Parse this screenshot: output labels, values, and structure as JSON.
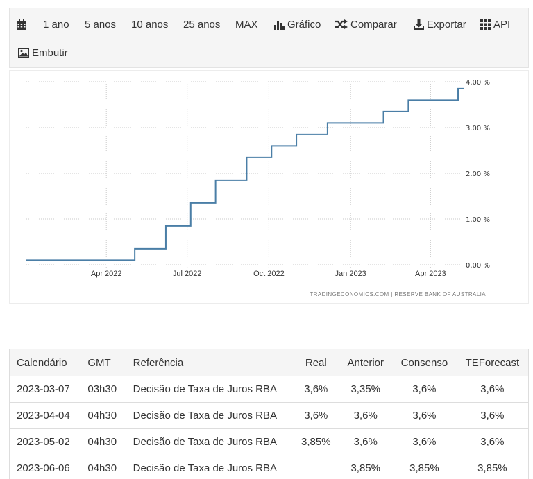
{
  "toolbar": {
    "items": [
      {
        "label": "",
        "icon": "calendar-icon"
      },
      {
        "label": "1 ano"
      },
      {
        "label": "5 anos"
      },
      {
        "label": "10 anos"
      },
      {
        "label": "25 anos"
      },
      {
        "label": "MAX"
      },
      {
        "label": "Gráfico",
        "icon": "bar-chart-icon"
      },
      {
        "label": "Comparar",
        "icon": "shuffle-icon"
      },
      {
        "label": "Exportar",
        "icon": "download-icon"
      },
      {
        "label": "API",
        "icon": "grid-icon"
      },
      {
        "label": "Embutir",
        "icon": "image-icon"
      }
    ]
  },
  "chart_data": {
    "type": "line",
    "step": true,
    "title": "",
    "xlabel": "",
    "ylabel": "",
    "x_ticks": [
      "Apr 2022",
      "Jul 2022",
      "Oct 2022",
      "Jan 2023",
      "Apr 2023"
    ],
    "y_ticks": [
      "0.00 %",
      "1.00 %",
      "2.00 %",
      "3.00 %",
      "4.00 %"
    ],
    "ylim": [
      0,
      4
    ],
    "xlim": [
      "2022-01-01",
      "2023-05-09"
    ],
    "grid": true,
    "y_axis_side": "right",
    "line_color": "#4a7ea6",
    "series": [
      {
        "points": [
          {
            "x": "2022-01-01",
            "y": 0.1
          },
          {
            "x": "2022-05-03",
            "y": 0.35
          },
          {
            "x": "2022-06-07",
            "y": 0.85
          },
          {
            "x": "2022-07-05",
            "y": 1.35
          },
          {
            "x": "2022-08-02",
            "y": 1.85
          },
          {
            "x": "2022-09-06",
            "y": 2.35
          },
          {
            "x": "2022-10-04",
            "y": 2.6
          },
          {
            "x": "2022-11-01",
            "y": 2.85
          },
          {
            "x": "2022-12-06",
            "y": 3.1
          },
          {
            "x": "2023-02-07",
            "y": 3.35
          },
          {
            "x": "2023-03-07",
            "y": 3.6
          },
          {
            "x": "2023-05-02",
            "y": 3.85
          }
        ]
      }
    ],
    "source": "TRADINGECONOMICS.COM | RESERVE BANK OF AUSTRALIA"
  },
  "calendar": {
    "headers": [
      "Calendário",
      "GMT",
      "Referência",
      "Real",
      "Anterior",
      "Consenso",
      "TEForecast"
    ],
    "rows": [
      [
        "2023-03-07",
        "03h30",
        "Decisão de Taxa de Juros RBA",
        "3,6%",
        "3,35%",
        "3,6%",
        "3,6%"
      ],
      [
        "2023-04-04",
        "04h30",
        "Decisão de Taxa de Juros RBA",
        "3,6%",
        "3,6%",
        "3,6%",
        "3,6%"
      ],
      [
        "2023-05-02",
        "04h30",
        "Decisão de Taxa de Juros RBA",
        "3,85%",
        "3,6%",
        "3,6%",
        "3,6%"
      ],
      [
        "2023-06-06",
        "04h30",
        "Decisão de Taxa de Juros RBA",
        "",
        "3,85%",
        "3,85%",
        "3,85%"
      ]
    ]
  }
}
